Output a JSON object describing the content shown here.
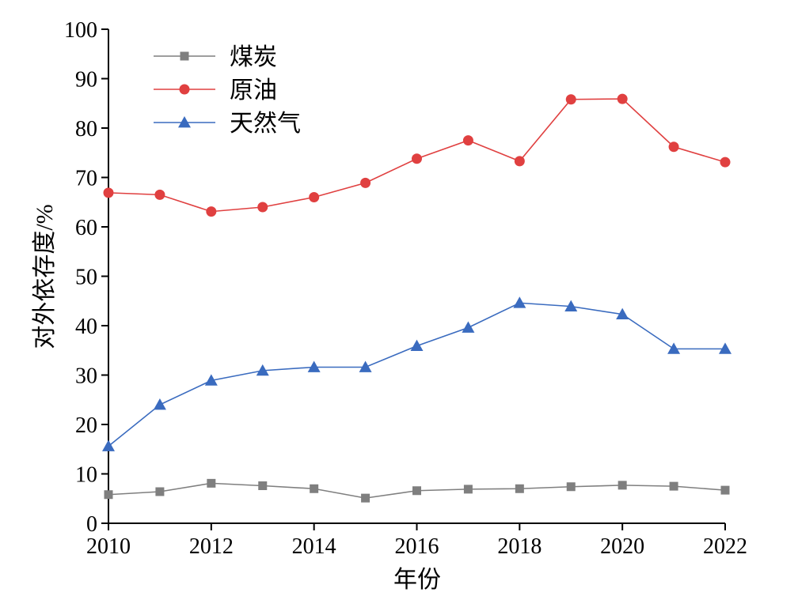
{
  "chart_data": {
    "type": "line",
    "xlabel": "年份",
    "ylabel": "对外依存度/%",
    "xlim": [
      2010,
      2022
    ],
    "ylim": [
      0,
      100
    ],
    "x_ticks": [
      2010,
      2012,
      2014,
      2016,
      2018,
      2020,
      2022
    ],
    "y_ticks": [
      0,
      10,
      20,
      30,
      40,
      50,
      60,
      70,
      80,
      90,
      100
    ],
    "grid": false,
    "legend_position": "top-left",
    "x": [
      2010,
      2011,
      2012,
      2013,
      2014,
      2015,
      2016,
      2017,
      2018,
      2019,
      2020,
      2021,
      2022
    ],
    "series": [
      {
        "name": "煤炭",
        "color": "#7f7f7f",
        "marker": "square",
        "values": [
          5.8,
          6.4,
          8.1,
          7.6,
          7.0,
          5.1,
          6.6,
          6.9,
          7.0,
          7.4,
          7.7,
          7.5,
          6.7
        ]
      },
      {
        "name": "原油",
        "color": "#e04040",
        "marker": "circle",
        "values": [
          66.9,
          66.5,
          63.1,
          64.0,
          66.0,
          68.9,
          73.8,
          77.5,
          73.3,
          85.8,
          85.9,
          76.2,
          73.1
        ]
      },
      {
        "name": "天然气",
        "color": "#3a6bbf",
        "marker": "triangle",
        "values": [
          15.6,
          24.0,
          28.9,
          30.9,
          31.6,
          31.6,
          35.9,
          39.6,
          44.6,
          43.9,
          42.3,
          35.3,
          35.3
        ]
      }
    ]
  }
}
